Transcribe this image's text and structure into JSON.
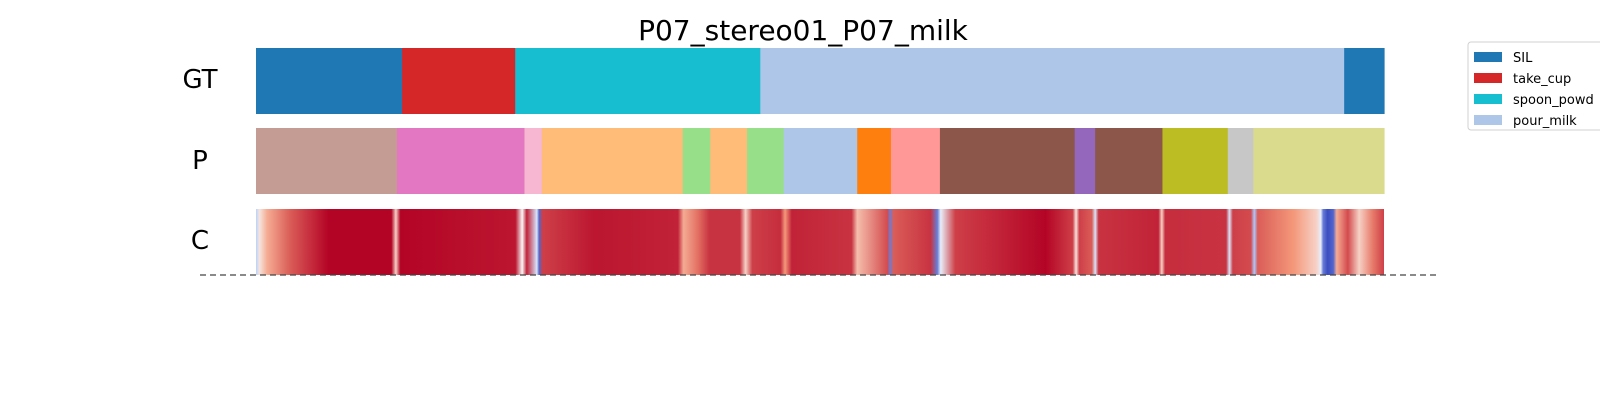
{
  "chart_data": {
    "type": "segmentation-timeline",
    "title": "P07_stereo01_P07_milk",
    "rows": [
      {
        "label": "GT",
        "segments": [
          {
            "start": 0.0,
            "end": 0.1295,
            "color": "#1f77b4"
          },
          {
            "start": 0.1295,
            "end": 0.2298,
            "color": "#d62728"
          },
          {
            "start": 0.2298,
            "end": 0.4471,
            "color": "#17becf"
          },
          {
            "start": 0.4471,
            "end": 0.9647,
            "color": "#aec7e8"
          },
          {
            "start": 0.9647,
            "end": 1.0,
            "color": "#1f77b4"
          }
        ]
      },
      {
        "label": "P",
        "segments": [
          {
            "start": 0.0,
            "end": 0.1249,
            "color": "#c49c94"
          },
          {
            "start": 0.1249,
            "end": 0.238,
            "color": "#e377c2"
          },
          {
            "start": 0.238,
            "end": 0.2534,
            "color": "#f7b6d2"
          },
          {
            "start": 0.2534,
            "end": 0.3783,
            "color": "#ffbb78"
          },
          {
            "start": 0.3783,
            "end": 0.4027,
            "color": "#98df8a"
          },
          {
            "start": 0.4027,
            "end": 0.4353,
            "color": "#ffbb78"
          },
          {
            "start": 0.4353,
            "end": 0.4679,
            "color": "#98df8a"
          },
          {
            "start": 0.4679,
            "end": 0.533,
            "color": "#aec7e8"
          },
          {
            "start": 0.533,
            "end": 0.5629,
            "color": "#ff7f0e"
          },
          {
            "start": 0.5629,
            "end": 0.6063,
            "color": "#ff9896"
          },
          {
            "start": 0.6063,
            "end": 0.7258,
            "color": "#8c564b"
          },
          {
            "start": 0.7258,
            "end": 0.7439,
            "color": "#9467bd"
          },
          {
            "start": 0.7439,
            "end": 0.8036,
            "color": "#8c564b"
          },
          {
            "start": 0.8036,
            "end": 0.8615,
            "color": "#bcbd22"
          },
          {
            "start": 0.8615,
            "end": 0.8842,
            "color": "#c7c7c7"
          },
          {
            "start": 0.8842,
            "end": 1.0,
            "color": "#dbdb8d"
          }
        ]
      },
      {
        "label": "C",
        "colormap": [
          "#3b4cc0",
          "#aac7fd",
          "#f7f7f7",
          "#f4987a",
          "#b40426"
        ],
        "confidence_points": [
          {
            "t": 0.0,
            "v": 0.3
          },
          {
            "t": 0.003,
            "v": 0.55
          },
          {
            "t": 0.01,
            "v": 0.7
          },
          {
            "t": 0.03,
            "v": 0.85
          },
          {
            "t": 0.064,
            "v": 1.0
          },
          {
            "t": 0.12,
            "v": 1.0
          },
          {
            "t": 0.124,
            "v": 0.6
          },
          {
            "t": 0.128,
            "v": 1.0
          },
          {
            "t": 0.23,
            "v": 0.97
          },
          {
            "t": 0.236,
            "v": 0.5
          },
          {
            "t": 0.24,
            "v": 0.95
          },
          {
            "t": 0.249,
            "v": 0.4
          },
          {
            "t": 0.251,
            "v": 0.05
          },
          {
            "t": 0.254,
            "v": 0.9
          },
          {
            "t": 0.3,
            "v": 0.97
          },
          {
            "t": 0.374,
            "v": 0.95
          },
          {
            "t": 0.379,
            "v": 0.7
          },
          {
            "t": 0.392,
            "v": 0.82
          },
          {
            "t": 0.402,
            "v": 0.92
          },
          {
            "t": 0.429,
            "v": 0.92
          },
          {
            "t": 0.434,
            "v": 0.6
          },
          {
            "t": 0.44,
            "v": 0.9
          },
          {
            "t": 0.465,
            "v": 0.93
          },
          {
            "t": 0.469,
            "v": 0.75
          },
          {
            "t": 0.475,
            "v": 0.95
          },
          {
            "t": 0.528,
            "v": 0.92
          },
          {
            "t": 0.533,
            "v": 0.65
          },
          {
            "t": 0.56,
            "v": 0.88
          },
          {
            "t": 0.562,
            "v": 0.1
          },
          {
            "t": 0.565,
            "v": 0.85
          },
          {
            "t": 0.598,
            "v": 0.92
          },
          {
            "t": 0.604,
            "v": 0.1
          },
          {
            "t": 0.607,
            "v": 0.45
          },
          {
            "t": 0.62,
            "v": 0.9
          },
          {
            "t": 0.7,
            "v": 1.0
          },
          {
            "t": 0.724,
            "v": 0.9
          },
          {
            "t": 0.727,
            "v": 0.55
          },
          {
            "t": 0.73,
            "v": 0.9
          },
          {
            "t": 0.741,
            "v": 0.85
          },
          {
            "t": 0.744,
            "v": 0.4
          },
          {
            "t": 0.747,
            "v": 0.92
          },
          {
            "t": 0.8,
            "v": 0.95
          },
          {
            "t": 0.803,
            "v": 0.6
          },
          {
            "t": 0.806,
            "v": 0.93
          },
          {
            "t": 0.86,
            "v": 0.92
          },
          {
            "t": 0.863,
            "v": 0.4
          },
          {
            "t": 0.866,
            "v": 0.9
          },
          {
            "t": 0.882,
            "v": 0.88
          },
          {
            "t": 0.885,
            "v": 0.25
          },
          {
            "t": 0.888,
            "v": 0.85
          },
          {
            "t": 0.92,
            "v": 0.75
          },
          {
            "t": 0.94,
            "v": 0.6
          },
          {
            "t": 0.944,
            "v": 0.45
          },
          {
            "t": 0.946,
            "v": 0.1
          },
          {
            "t": 0.95,
            "v": 0.0
          },
          {
            "t": 0.955,
            "v": 0.05
          },
          {
            "t": 0.958,
            "v": 0.7
          },
          {
            "t": 0.968,
            "v": 0.88
          },
          {
            "t": 0.978,
            "v": 0.6
          },
          {
            "t": 0.99,
            "v": 0.8
          },
          {
            "t": 1.0,
            "v": 0.9
          }
        ]
      }
    ],
    "legend": {
      "placement": "top-right",
      "entries": [
        {
          "label": "SIL",
          "color": "#1f77b4"
        },
        {
          "label": "take_cup",
          "color": "#d62728"
        },
        {
          "label": "spoon_powd",
          "color": "#17becf"
        },
        {
          "label": "pour_milk",
          "color": "#aec7e8"
        }
      ]
    },
    "baseline": "dashed"
  }
}
